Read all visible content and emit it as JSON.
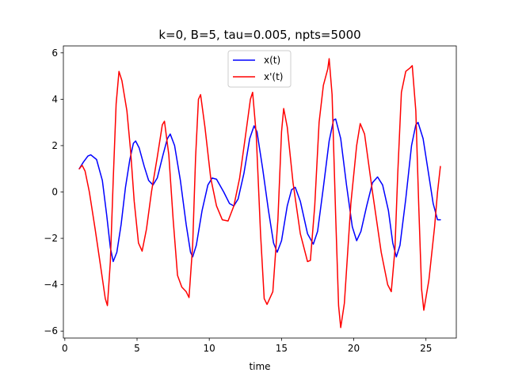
{
  "chart_data": {
    "type": "line",
    "title": "k=0, B=5, tau=0.005, npts=5000",
    "xlabel": "time",
    "ylabel": "",
    "xlim": [
      -0.1,
      27.1
    ],
    "ylim": [
      -6.3,
      6.3
    ],
    "xticks": [
      0,
      5,
      10,
      15,
      20,
      25
    ],
    "yticks": [
      -6,
      -4,
      -2,
      0,
      2,
      4,
      6
    ],
    "grid": false,
    "legend_position": "top-center",
    "series": [
      {
        "name": "x(t)",
        "color": "#0000ff",
        "points": [
          [
            1.0,
            1.0
          ],
          [
            1.3,
            1.3
          ],
          [
            1.6,
            1.55
          ],
          [
            1.8,
            1.6
          ],
          [
            2.2,
            1.4
          ],
          [
            2.6,
            0.5
          ],
          [
            2.9,
            -1.0
          ],
          [
            3.15,
            -2.4
          ],
          [
            3.35,
            -3.0
          ],
          [
            3.6,
            -2.6
          ],
          [
            3.9,
            -1.4
          ],
          [
            4.2,
            0.2
          ],
          [
            4.5,
            1.4
          ],
          [
            4.75,
            2.1
          ],
          [
            4.9,
            2.2
          ],
          [
            5.15,
            1.9
          ],
          [
            5.5,
            1.1
          ],
          [
            5.8,
            0.5
          ],
          [
            6.1,
            0.3
          ],
          [
            6.4,
            0.6
          ],
          [
            6.8,
            1.6
          ],
          [
            7.1,
            2.3
          ],
          [
            7.3,
            2.5
          ],
          [
            7.6,
            2.0
          ],
          [
            8.0,
            0.5
          ],
          [
            8.4,
            -1.4
          ],
          [
            8.7,
            -2.6
          ],
          [
            8.85,
            -2.8
          ],
          [
            9.1,
            -2.3
          ],
          [
            9.5,
            -0.8
          ],
          [
            9.9,
            0.3
          ],
          [
            10.2,
            0.6
          ],
          [
            10.5,
            0.55
          ],
          [
            11.0,
            0.0
          ],
          [
            11.4,
            -0.5
          ],
          [
            11.7,
            -0.6
          ],
          [
            12.0,
            -0.3
          ],
          [
            12.4,
            0.8
          ],
          [
            12.8,
            2.3
          ],
          [
            13.1,
            2.85
          ],
          [
            13.3,
            2.6
          ],
          [
            13.7,
            1.0
          ],
          [
            14.1,
            -0.8
          ],
          [
            14.45,
            -2.2
          ],
          [
            14.7,
            -2.6
          ],
          [
            15.0,
            -2.1
          ],
          [
            15.4,
            -0.6
          ],
          [
            15.7,
            0.1
          ],
          [
            15.95,
            0.2
          ],
          [
            16.3,
            -0.4
          ],
          [
            16.8,
            -1.8
          ],
          [
            17.2,
            -2.25
          ],
          [
            17.5,
            -1.7
          ],
          [
            17.9,
            0.2
          ],
          [
            18.3,
            2.2
          ],
          [
            18.6,
            3.1
          ],
          [
            18.75,
            3.15
          ],
          [
            19.1,
            2.3
          ],
          [
            19.5,
            0.3
          ],
          [
            19.9,
            -1.5
          ],
          [
            20.2,
            -2.1
          ],
          [
            20.5,
            -1.7
          ],
          [
            20.9,
            -0.6
          ],
          [
            21.3,
            0.4
          ],
          [
            21.65,
            0.65
          ],
          [
            22.0,
            0.3
          ],
          [
            22.4,
            -0.8
          ],
          [
            22.7,
            -2.2
          ],
          [
            22.95,
            -2.8
          ],
          [
            23.2,
            -2.3
          ],
          [
            23.6,
            -0.3
          ],
          [
            24.0,
            2.0
          ],
          [
            24.3,
            2.9
          ],
          [
            24.45,
            3.0
          ],
          [
            24.8,
            2.3
          ],
          [
            25.2,
            0.7
          ],
          [
            25.5,
            -0.5
          ],
          [
            25.8,
            -1.2
          ],
          [
            26.0,
            -1.2
          ]
        ]
      },
      {
        "name": "x'(t)",
        "color": "#ff0000",
        "points": [
          [
            1.0,
            1.0
          ],
          [
            1.2,
            1.15
          ],
          [
            1.4,
            0.9
          ],
          [
            1.7,
            0.0
          ],
          [
            2.1,
            -1.6
          ],
          [
            2.5,
            -3.3
          ],
          [
            2.8,
            -4.6
          ],
          [
            2.95,
            -4.9
          ],
          [
            3.15,
            -3.0
          ],
          [
            3.35,
            0.5
          ],
          [
            3.55,
            3.8
          ],
          [
            3.75,
            5.2
          ],
          [
            3.95,
            4.8
          ],
          [
            4.3,
            3.5
          ],
          [
            4.55,
            1.8
          ],
          [
            4.8,
            -0.4
          ],
          [
            5.1,
            -2.2
          ],
          [
            5.35,
            -2.55
          ],
          [
            5.65,
            -1.6
          ],
          [
            6.0,
            0.0
          ],
          [
            6.4,
            1.5
          ],
          [
            6.75,
            2.9
          ],
          [
            6.9,
            3.05
          ],
          [
            7.2,
            1.6
          ],
          [
            7.5,
            -1.2
          ],
          [
            7.8,
            -3.6
          ],
          [
            8.1,
            -4.1
          ],
          [
            8.4,
            -4.3
          ],
          [
            8.6,
            -4.55
          ],
          [
            8.85,
            -2.3
          ],
          [
            9.05,
            1.5
          ],
          [
            9.25,
            4.0
          ],
          [
            9.4,
            4.2
          ],
          [
            9.7,
            2.8
          ],
          [
            10.1,
            0.6
          ],
          [
            10.5,
            -0.6
          ],
          [
            10.9,
            -1.2
          ],
          [
            11.3,
            -1.25
          ],
          [
            11.7,
            -0.6
          ],
          [
            12.1,
            0.6
          ],
          [
            12.5,
            2.4
          ],
          [
            12.85,
            4.0
          ],
          [
            13.0,
            4.3
          ],
          [
            13.25,
            2.5
          ],
          [
            13.55,
            -1.8
          ],
          [
            13.8,
            -4.6
          ],
          [
            14.0,
            -4.85
          ],
          [
            14.4,
            -4.3
          ],
          [
            14.75,
            -1.2
          ],
          [
            15.0,
            2.6
          ],
          [
            15.15,
            3.6
          ],
          [
            15.4,
            2.8
          ],
          [
            15.8,
            0.4
          ],
          [
            16.3,
            -1.8
          ],
          [
            16.8,
            -3.0
          ],
          [
            17.0,
            -2.95
          ],
          [
            17.3,
            -0.6
          ],
          [
            17.6,
            3.0
          ],
          [
            17.9,
            4.6
          ],
          [
            18.2,
            5.3
          ],
          [
            18.3,
            5.75
          ],
          [
            18.5,
            4.2
          ],
          [
            18.75,
            -1.0
          ],
          [
            18.95,
            -4.9
          ],
          [
            19.1,
            -5.85
          ],
          [
            19.35,
            -4.8
          ],
          [
            19.8,
            -0.5
          ],
          [
            20.2,
            2.0
          ],
          [
            20.45,
            2.95
          ],
          [
            20.75,
            2.5
          ],
          [
            21.3,
            0.0
          ],
          [
            21.9,
            -2.6
          ],
          [
            22.35,
            -4.0
          ],
          [
            22.6,
            -4.3
          ],
          [
            22.85,
            -2.5
          ],
          [
            23.05,
            0.8
          ],
          [
            23.3,
            4.3
          ],
          [
            23.6,
            5.2
          ],
          [
            23.9,
            5.35
          ],
          [
            24.05,
            5.45
          ],
          [
            24.3,
            3.5
          ],
          [
            24.5,
            -0.6
          ],
          [
            24.7,
            -4.2
          ],
          [
            24.85,
            -5.1
          ],
          [
            25.2,
            -3.8
          ],
          [
            25.6,
            -1.5
          ],
          [
            25.8,
            0.0
          ],
          [
            26.0,
            1.1
          ]
        ]
      }
    ]
  }
}
